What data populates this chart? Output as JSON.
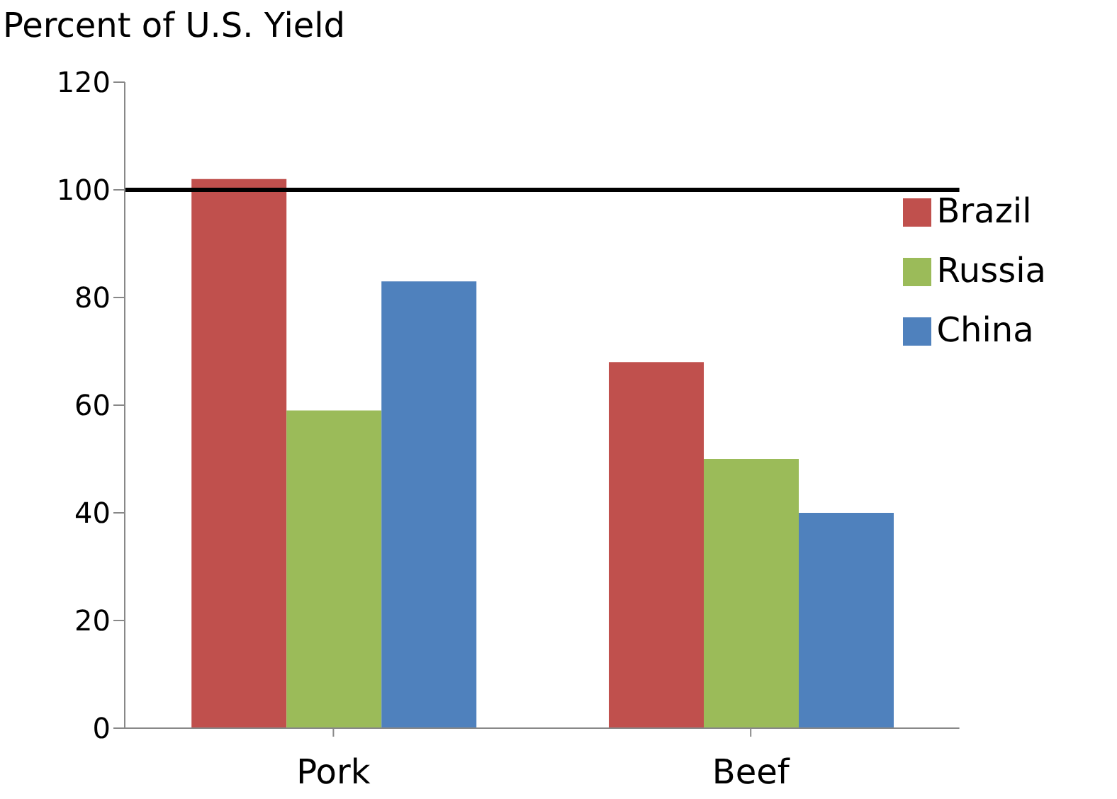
{
  "chart_data": {
    "type": "bar",
    "ylabel": "Percent of U.S. Yield",
    "categories": [
      "Pork",
      "Beef"
    ],
    "series": [
      {
        "name": "Brazil",
        "color": "#c0504d",
        "values": [
          102,
          68
        ]
      },
      {
        "name": "Russia",
        "color": "#9bbb59",
        "values": [
          59,
          50
        ]
      },
      {
        "name": "China",
        "color": "#4f81bd",
        "values": [
          83,
          40
        ]
      }
    ],
    "ylim": [
      0,
      120
    ],
    "yticks": [
      0,
      20,
      40,
      60,
      80,
      100,
      120
    ],
    "grid": false,
    "legend": "top right",
    "ref_lines": [
      {
        "axis": "y",
        "value": 100,
        "color": "#000000"
      }
    ]
  }
}
